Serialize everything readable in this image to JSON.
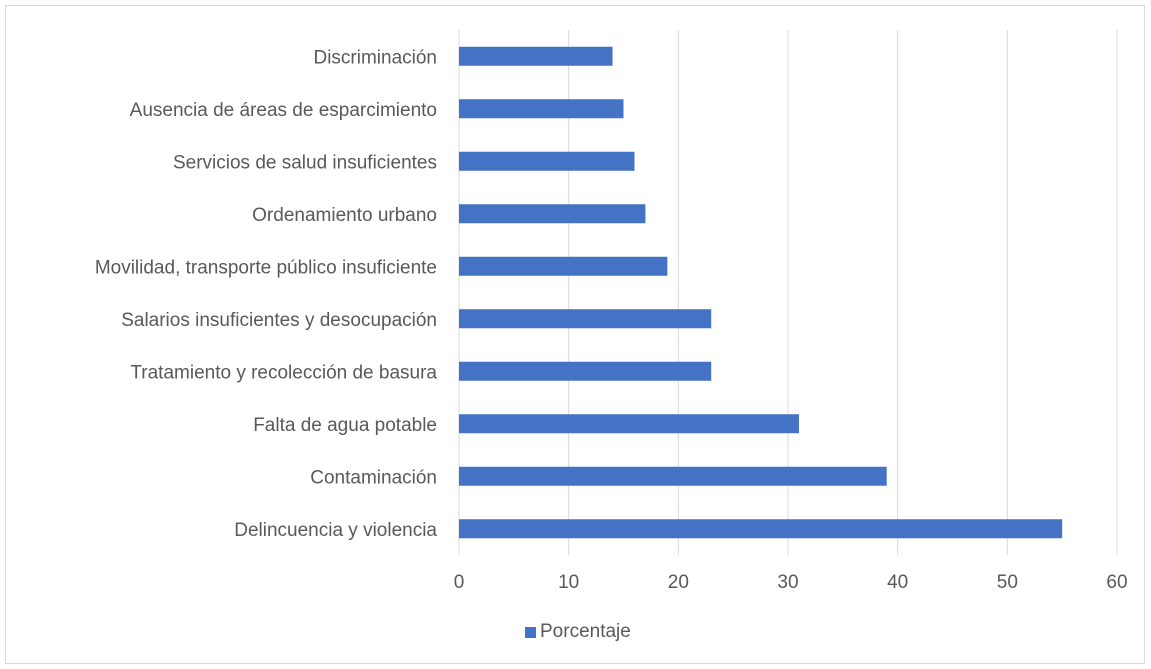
{
  "chart_data": {
    "type": "bar",
    "orientation": "horizontal",
    "categories": [
      "Delincuencia y violencia",
      "Contaminación",
      "Falta de agua potable",
      "Tratamiento y recolección de basura ",
      "Salarios insuficientes y desocupación",
      "Movilidad, transporte público insuficiente ",
      "Ordenamiento urbano",
      "Servicios de salud insuficientes ",
      "Ausencia de áreas de esparcimiento",
      "Discriminación "
    ],
    "series": [
      {
        "name": "Porcentaje",
        "values": [
          55,
          39,
          31,
          23,
          23,
          19,
          17,
          16,
          15,
          14
        ],
        "color": "#4472c4"
      }
    ],
    "xlim": [
      0,
      60
    ],
    "xticks": [
      0,
      10,
      20,
      30,
      40,
      50,
      60
    ],
    "grid": true,
    "legend_position": "bottom",
    "title": "",
    "xlabel": "",
    "ylabel": ""
  }
}
